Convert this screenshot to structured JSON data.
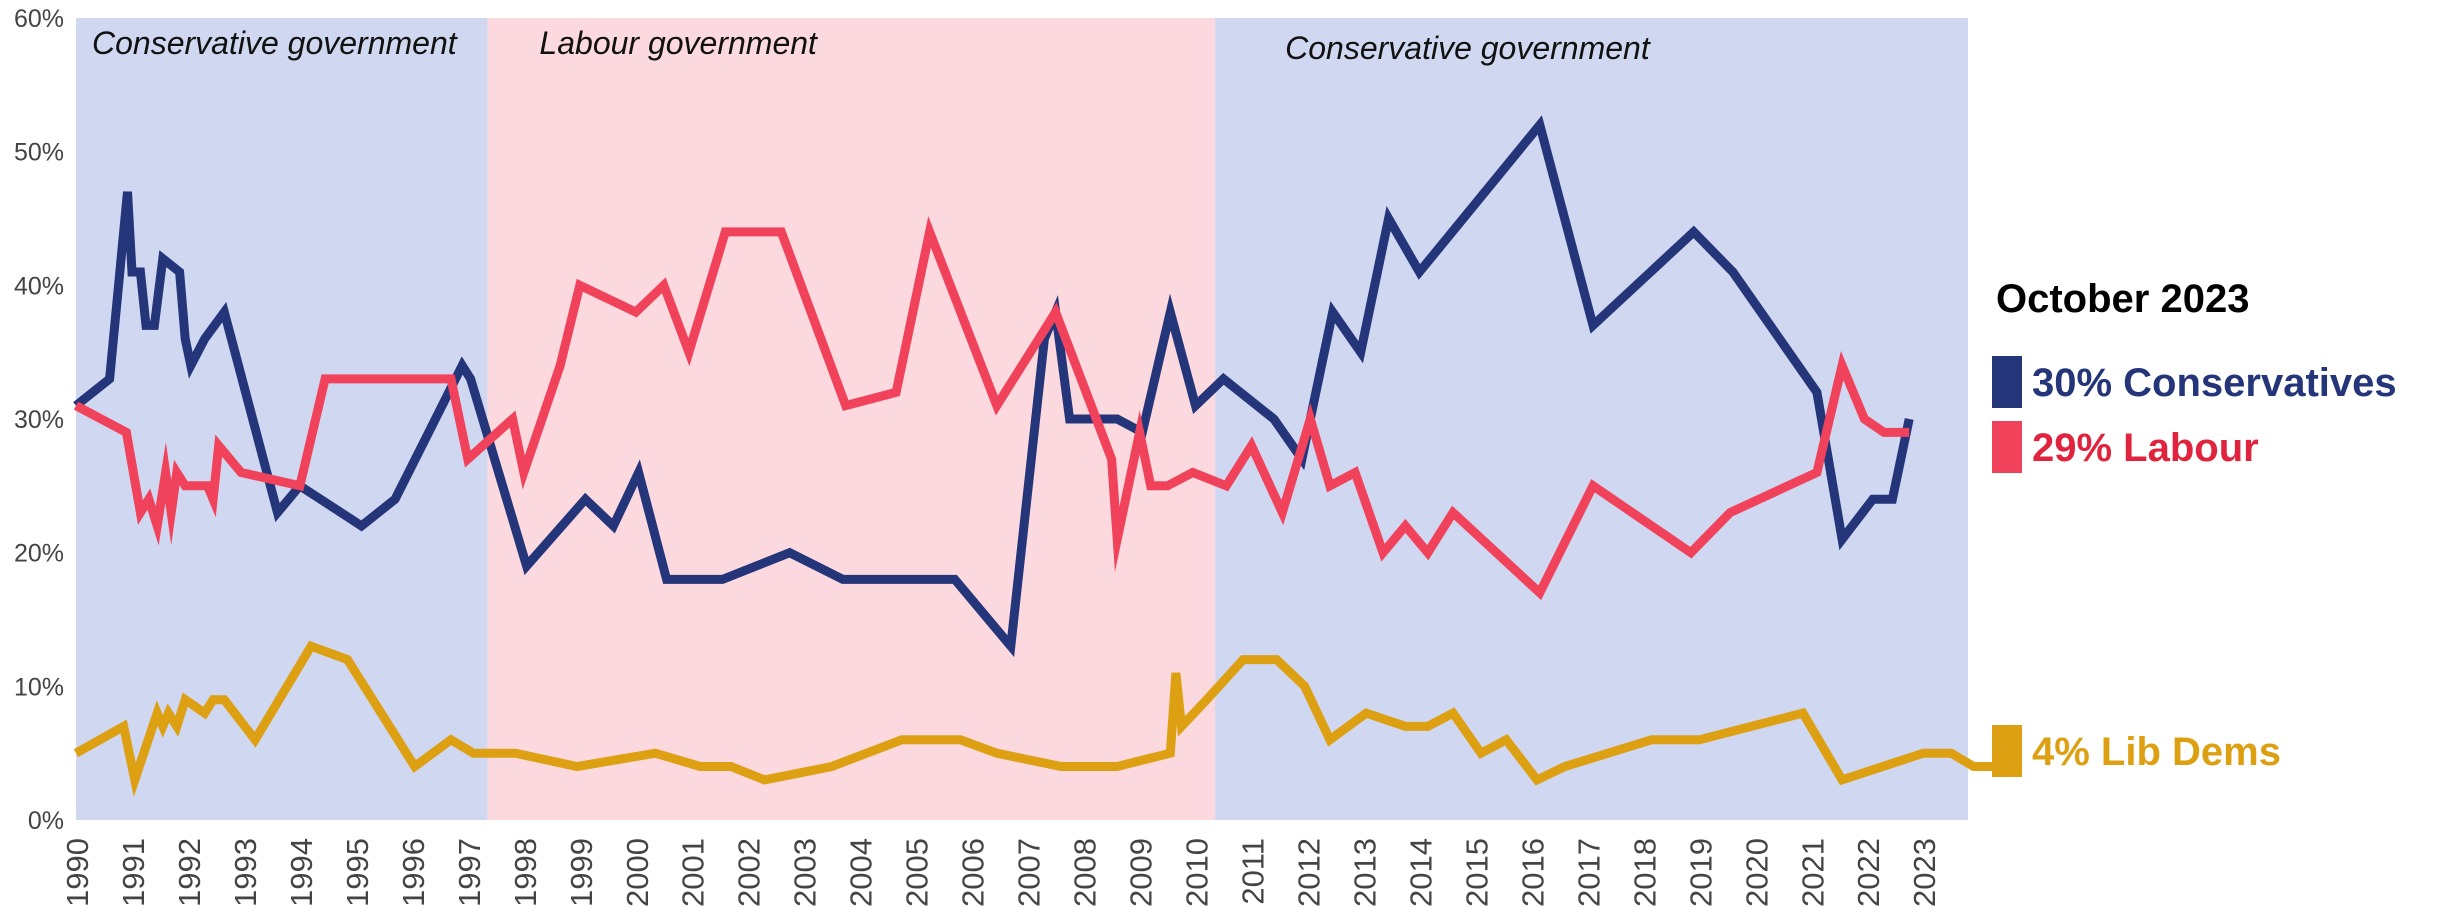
{
  "chart_data": {
    "type": "line",
    "title": "",
    "xlabel": "",
    "ylabel": "",
    "ylim": [
      0,
      60
    ],
    "y_ticks": [
      "0%",
      "10%",
      "20%",
      "30%",
      "40%",
      "50%",
      "60%"
    ],
    "x_ticks": [
      "1990",
      "1991",
      "1992",
      "1993",
      "1994",
      "1995",
      "1996",
      "1997",
      "1998",
      "1999",
      "2000",
      "2001",
      "2002",
      "2003",
      "2004",
      "2005",
      "2006",
      "2007",
      "2008",
      "2009",
      "2010",
      "2011",
      "2012",
      "2013",
      "2014",
      "2015",
      "2016",
      "2017",
      "2018",
      "2019",
      "2020",
      "2021",
      "2022",
      "2023"
    ],
    "xlim": [
      1990,
      2023.8
    ],
    "grid": false,
    "periods": [
      {
        "label": "Conservative government",
        "start": 1990.0,
        "end": 1997.35,
        "color": "#d0d7f0"
      },
      {
        "label": "Labour government",
        "start": 1997.35,
        "end": 2010.35,
        "color": "#fcd9de"
      },
      {
        "label": "Conservative government",
        "start": 2010.35,
        "end": 2023.8,
        "color": "#d0d7f0"
      }
    ],
    "series": [
      {
        "name": "Conservatives",
        "color": "#24357a",
        "points": [
          [
            1990.0,
            31
          ],
          [
            1990.6,
            33
          ],
          [
            1990.92,
            47
          ],
          [
            1991.0,
            41
          ],
          [
            1991.15,
            41
          ],
          [
            1991.25,
            37
          ],
          [
            1991.4,
            37
          ],
          [
            1991.55,
            42
          ],
          [
            1991.85,
            41
          ],
          [
            1991.95,
            36
          ],
          [
            1992.05,
            34
          ],
          [
            1992.3,
            36
          ],
          [
            1992.65,
            38
          ],
          [
            1993.6,
            23
          ],
          [
            1994.0,
            25
          ],
          [
            1995.1,
            22
          ],
          [
            1995.7,
            24
          ],
          [
            1996.3,
            29
          ],
          [
            1996.9,
            34
          ],
          [
            1997.05,
            33
          ],
          [
            1998.05,
            19
          ],
          [
            1999.1,
            24
          ],
          [
            1999.6,
            22
          ],
          [
            2000.05,
            26
          ],
          [
            2000.55,
            18
          ],
          [
            2001.55,
            18
          ],
          [
            2002.75,
            20
          ],
          [
            2003.7,
            18
          ],
          [
            2005.0,
            18
          ],
          [
            2005.7,
            18
          ],
          [
            2006.7,
            13
          ],
          [
            2007.3,
            36
          ],
          [
            2007.5,
            38
          ],
          [
            2007.75,
            30
          ],
          [
            2008.6,
            30
          ],
          [
            2009.05,
            29
          ],
          [
            2009.55,
            38
          ],
          [
            2010.0,
            31
          ],
          [
            2010.5,
            33
          ],
          [
            2011.4,
            30
          ],
          [
            2011.9,
            27
          ],
          [
            2012.45,
            38
          ],
          [
            2012.95,
            35
          ],
          [
            2013.45,
            45
          ],
          [
            2014.0,
            41
          ],
          [
            2016.15,
            52
          ],
          [
            2017.1,
            37
          ],
          [
            2018.9,
            44
          ],
          [
            2019.6,
            41
          ],
          [
            2021.1,
            32
          ],
          [
            2021.55,
            21
          ],
          [
            2022.1,
            24
          ],
          [
            2022.45,
            24
          ],
          [
            2022.75,
            30
          ]
        ]
      },
      {
        "name": "Labour",
        "color": "#f0435b",
        "points": [
          [
            1990.0,
            31
          ],
          [
            1990.9,
            29
          ],
          [
            1991.15,
            23
          ],
          [
            1991.3,
            24
          ],
          [
            1991.45,
            22
          ],
          [
            1991.6,
            26
          ],
          [
            1991.7,
            23
          ],
          [
            1991.8,
            26
          ],
          [
            1991.95,
            25
          ],
          [
            1992.35,
            25
          ],
          [
            1992.45,
            24
          ],
          [
            1992.55,
            28
          ],
          [
            1992.95,
            26
          ],
          [
            1994.0,
            25
          ],
          [
            1994.45,
            33
          ],
          [
            1995.6,
            33
          ],
          [
            1996.7,
            33
          ],
          [
            1997.0,
            27
          ],
          [
            1997.8,
            30
          ],
          [
            1998.0,
            26
          ],
          [
            1998.65,
            34
          ],
          [
            1999.0,
            40
          ],
          [
            2000.0,
            38
          ],
          [
            2000.5,
            40
          ],
          [
            2000.95,
            35
          ],
          [
            2001.6,
            44
          ],
          [
            2002.6,
            44
          ],
          [
            2003.75,
            31
          ],
          [
            2004.65,
            32
          ],
          [
            2005.25,
            44
          ],
          [
            2006.45,
            31
          ],
          [
            2007.5,
            38
          ],
          [
            2008.5,
            27
          ],
          [
            2008.6,
            21
          ],
          [
            2008.8,
            25
          ],
          [
            2009.0,
            29
          ],
          [
            2009.2,
            25
          ],
          [
            2009.5,
            25
          ],
          [
            2009.95,
            26
          ],
          [
            2010.55,
            25
          ],
          [
            2011.0,
            28
          ],
          [
            2011.55,
            23
          ],
          [
            2012.05,
            30
          ],
          [
            2012.4,
            25
          ],
          [
            2012.85,
            26
          ],
          [
            2013.35,
            20
          ],
          [
            2013.75,
            22
          ],
          [
            2014.15,
            20
          ],
          [
            2014.6,
            23
          ],
          [
            2016.15,
            17
          ],
          [
            2017.1,
            25
          ],
          [
            2018.85,
            20
          ],
          [
            2019.55,
            23
          ],
          [
            2021.1,
            26
          ],
          [
            2021.55,
            34
          ],
          [
            2021.95,
            30
          ],
          [
            2022.3,
            29
          ],
          [
            2022.75,
            29
          ]
        ]
      },
      {
        "name": "Lib Dems",
        "color": "#dda013",
        "points": [
          [
            1990.0,
            5
          ],
          [
            1990.85,
            7
          ],
          [
            1991.05,
            3
          ],
          [
            1991.45,
            8
          ],
          [
            1991.55,
            7
          ],
          [
            1991.65,
            8
          ],
          [
            1991.8,
            7
          ],
          [
            1991.95,
            9
          ],
          [
            1992.3,
            8
          ],
          [
            1992.45,
            9
          ],
          [
            1992.65,
            9
          ],
          [
            1993.2,
            6
          ],
          [
            1994.2,
            13
          ],
          [
            1994.85,
            12
          ],
          [
            1996.05,
            4
          ],
          [
            1996.7,
            6
          ],
          [
            1997.1,
            5
          ],
          [
            1997.85,
            5
          ],
          [
            1998.95,
            4
          ],
          [
            2000.35,
            5
          ],
          [
            2001.15,
            4
          ],
          [
            2001.7,
            4
          ],
          [
            2002.3,
            3
          ],
          [
            2003.5,
            4
          ],
          [
            2004.75,
            6
          ],
          [
            2005.8,
            6
          ],
          [
            2006.45,
            5
          ],
          [
            2007.6,
            4
          ],
          [
            2008.6,
            4
          ],
          [
            2009.55,
            5
          ],
          [
            2009.65,
            11
          ],
          [
            2009.75,
            7
          ],
          [
            2010.2,
            9
          ],
          [
            2010.85,
            12
          ],
          [
            2011.45,
            12
          ],
          [
            2011.95,
            10
          ],
          [
            2012.4,
            6
          ],
          [
            2013.05,
            8
          ],
          [
            2013.75,
            7
          ],
          [
            2014.15,
            7
          ],
          [
            2014.6,
            8
          ],
          [
            2015.1,
            5
          ],
          [
            2015.55,
            6
          ],
          [
            2016.1,
            3
          ],
          [
            2016.6,
            4
          ],
          [
            2018.15,
            6
          ],
          [
            2019.0,
            6
          ],
          [
            2020.85,
            8
          ],
          [
            2021.55,
            3
          ],
          [
            2023.0,
            5
          ],
          [
            2023.5,
            5
          ],
          [
            2023.9,
            4
          ],
          [
            2024.25,
            4
          ]
        ]
      }
    ],
    "legend": {
      "title": "October 2023",
      "position": "right",
      "entries": [
        {
          "label": "30% Conservatives",
          "color": "#24357a",
          "text_color": "#24357a"
        },
        {
          "label": "29% Labour",
          "color": "#f0435b",
          "text_color": "#e0243d"
        },
        {
          "label": "4% Lib Dems",
          "color": "#dda013",
          "text_color": "#dda013"
        }
      ]
    }
  }
}
